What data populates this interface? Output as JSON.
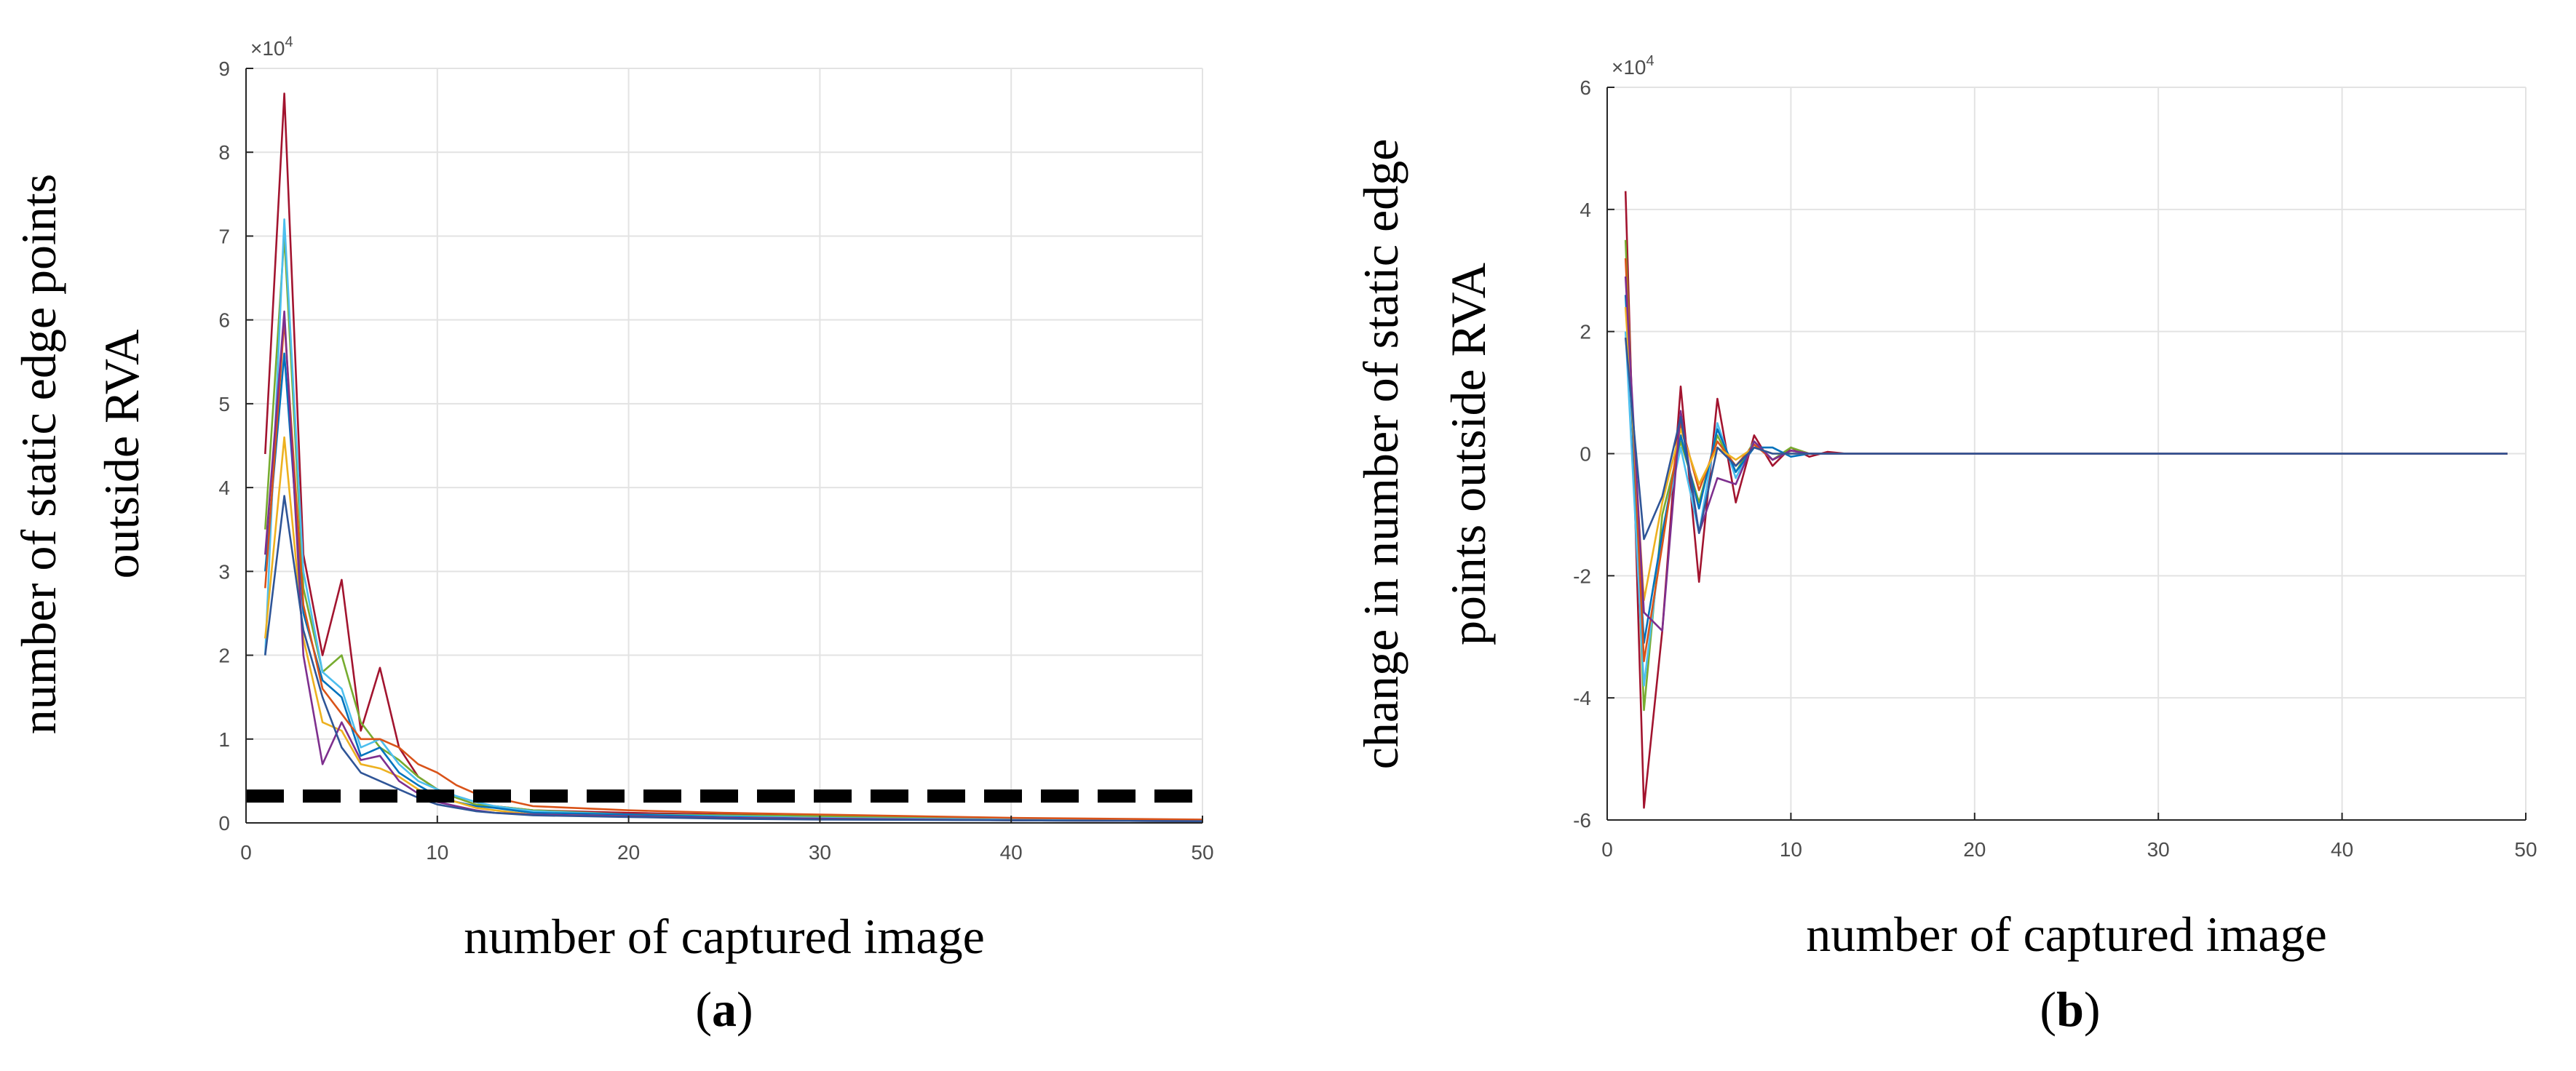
{
  "figure": {
    "caption_a": "a",
    "caption_b": "b"
  },
  "chart_data": [
    {
      "id": "a",
      "type": "line",
      "xlabel": "number of captured image",
      "ylabel_lines": [
        "number of static edge points",
        "outside RVA"
      ],
      "y_exponent": "×10",
      "y_exponent_power": "4",
      "xlim": [
        0,
        50
      ],
      "ylim": [
        0,
        9
      ],
      "xticks": [
        0,
        10,
        20,
        30,
        40,
        50
      ],
      "yticks": [
        0,
        1,
        2,
        3,
        4,
        5,
        6,
        7,
        8,
        9
      ],
      "grid": true,
      "threshold": {
        "y": 0.32,
        "style": "dashed",
        "color": "#000000"
      },
      "x": [
        1,
        2,
        3,
        4,
        5,
        6,
        7,
        8,
        9,
        10,
        11,
        12,
        13,
        15,
        20,
        25,
        30,
        40,
        50
      ],
      "series": [
        {
          "color": "#a2142f",
          "values": [
            4.4,
            8.7,
            3.2,
            2.0,
            2.9,
            1.1,
            1.85,
            0.9,
            0.55,
            0.4,
            0.3,
            0.22,
            0.2,
            0.15,
            0.12,
            0.1,
            0.08,
            0.05,
            0.03
          ]
        },
        {
          "color": "#77ac30",
          "values": [
            3.5,
            7.0,
            2.8,
            1.8,
            2.0,
            1.2,
            0.9,
            0.75,
            0.55,
            0.4,
            0.3,
            0.22,
            0.2,
            0.15,
            0.1,
            0.09,
            0.08,
            0.05,
            0.03
          ]
        },
        {
          "color": "#4dbeee",
          "values": [
            2.0,
            7.2,
            3.0,
            1.8,
            1.6,
            0.9,
            1.0,
            0.7,
            0.5,
            0.4,
            0.32,
            0.25,
            0.2,
            0.14,
            0.1,
            0.08,
            0.06,
            0.04,
            0.02
          ]
        },
        {
          "color": "#0072bd",
          "values": [
            3.0,
            5.6,
            2.5,
            1.7,
            1.5,
            0.8,
            0.9,
            0.6,
            0.45,
            0.32,
            0.25,
            0.2,
            0.18,
            0.12,
            0.1,
            0.07,
            0.05,
            0.03,
            0.02
          ]
        },
        {
          "color": "#d95319",
          "values": [
            2.8,
            6.0,
            2.6,
            1.6,
            1.3,
            1.0,
            1.0,
            0.9,
            0.7,
            0.6,
            0.45,
            0.35,
            0.3,
            0.2,
            0.15,
            0.12,
            0.1,
            0.06,
            0.04
          ]
        },
        {
          "color": "#edb120",
          "values": [
            2.2,
            4.6,
            2.2,
            1.2,
            1.1,
            0.7,
            0.65,
            0.55,
            0.4,
            0.3,
            0.25,
            0.18,
            0.15,
            0.1,
            0.08,
            0.06,
            0.05,
            0.03,
            0.02
          ]
        },
        {
          "color": "#7e2f8e",
          "values": [
            3.2,
            6.1,
            2.0,
            0.7,
            1.2,
            0.75,
            0.8,
            0.5,
            0.35,
            0.25,
            0.2,
            0.15,
            0.12,
            0.1,
            0.08,
            0.06,
            0.05,
            0.03,
            0.02
          ]
        },
        {
          "color": "#2f5597",
          "values": [
            2.0,
            3.9,
            2.3,
            1.5,
            0.9,
            0.6,
            0.5,
            0.4,
            0.3,
            0.22,
            0.18,
            0.14,
            0.12,
            0.09,
            0.07,
            0.05,
            0.04,
            0.03,
            0.02
          ]
        }
      ]
    },
    {
      "id": "b",
      "type": "line",
      "xlabel": "number of captured image",
      "ylabel_lines": [
        "change in number of static edge",
        "points outside RVA"
      ],
      "y_exponent": "×10",
      "y_exponent_power": "4",
      "xlim": [
        0,
        50
      ],
      "ylim": [
        -6,
        6
      ],
      "xticks": [
        0,
        10,
        20,
        30,
        40,
        50
      ],
      "yticks": [
        -6,
        -4,
        -2,
        0,
        2,
        4,
        6
      ],
      "grid": true,
      "x": [
        1,
        2,
        3,
        4,
        5,
        6,
        7,
        8,
        9,
        10,
        11,
        12,
        13,
        15,
        20,
        25,
        30,
        40,
        49
      ],
      "series": [
        {
          "color": "#a2142f",
          "values": [
            4.3,
            -5.8,
            -2.9,
            1.1,
            -2.1,
            0.9,
            -0.8,
            0.3,
            -0.2,
            0.1,
            -0.05,
            0.03,
            0.0,
            0.0,
            0.0,
            0.0,
            0.0,
            0.0,
            0.0
          ]
        },
        {
          "color": "#77ac30",
          "values": [
            3.5,
            -4.2,
            -1.0,
            0.2,
            -0.8,
            0.3,
            -0.3,
            0.2,
            -0.1,
            0.1,
            0.0,
            0.0,
            0.0,
            0.0,
            0.0,
            0.0,
            0.0,
            0.0,
            0.0
          ]
        },
        {
          "color": "#4dbeee",
          "values": [
            2.0,
            -3.8,
            -1.3,
            0.1,
            -1.3,
            0.5,
            -0.4,
            0.2,
            -0.1,
            0.05,
            0.0,
            0.0,
            0.0,
            0.0,
            0.0,
            0.0,
            0.0,
            0.0,
            0.0
          ]
        },
        {
          "color": "#0072bd",
          "values": [
            2.6,
            -3.1,
            -1.3,
            0.3,
            -0.9,
            0.4,
            -0.3,
            0.1,
            0.1,
            -0.05,
            0.0,
            0.0,
            0.0,
            0.0,
            0.0,
            0.0,
            0.0,
            0.0,
            0.0
          ]
        },
        {
          "color": "#d95319",
          "values": [
            3.2,
            -3.4,
            -1.5,
            0.5,
            -0.6,
            0.2,
            -0.2,
            0.15,
            -0.1,
            0.05,
            0.0,
            0.0,
            0.0,
            0.0,
            0.0,
            0.0,
            0.0,
            0.0,
            0.0
          ]
        },
        {
          "color": "#edb120",
          "values": [
            2.4,
            -2.4,
            -0.8,
            0.4,
            -0.5,
            0.1,
            -0.1,
            0.1,
            0.0,
            0.0,
            0.0,
            0.0,
            0.0,
            0.0,
            0.0,
            0.0,
            0.0,
            0.0,
            0.0
          ]
        },
        {
          "color": "#7e2f8e",
          "values": [
            2.9,
            -2.6,
            -2.9,
            0.7,
            -1.3,
            -0.4,
            -0.5,
            0.2,
            -0.1,
            0.05,
            0.0,
            0.0,
            0.0,
            0.0,
            0.0,
            0.0,
            0.0,
            0.0,
            0.0
          ]
        },
        {
          "color": "#2f5597",
          "values": [
            1.9,
            -1.4,
            -0.7,
            0.6,
            -1.3,
            0.1,
            -0.2,
            0.1,
            0.0,
            0.0,
            0.0,
            0.0,
            0.0,
            0.0,
            0.0,
            0.0,
            0.0,
            0.0,
            0.0
          ]
        }
      ]
    }
  ]
}
